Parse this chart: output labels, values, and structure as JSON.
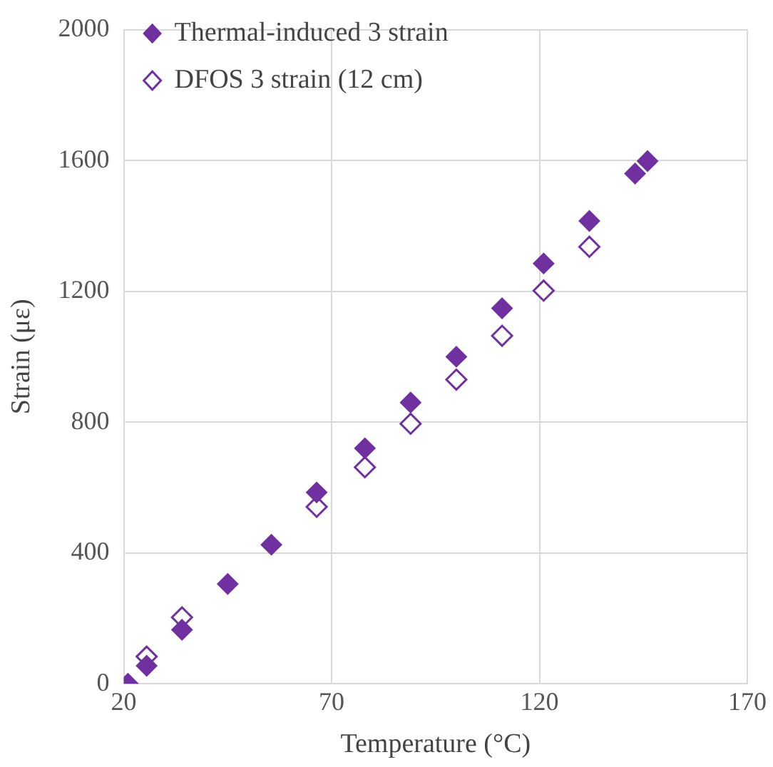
{
  "chart_data": {
    "type": "scatter",
    "xlabel": "Temperature (°C)",
    "ylabel": "Strain (με)",
    "xlim": [
      20,
      170
    ],
    "xticks": [
      20,
      70,
      120,
      170
    ],
    "ylim": [
      0,
      2000
    ],
    "yticks": [
      0,
      400,
      800,
      1200,
      1600,
      2000
    ],
    "grid": true,
    "legend": "top left",
    "marker": "diamond",
    "series": [
      {
        "name": "Thermal-induced 3 strain",
        "color": "#7030a0",
        "x": [
          21,
          25.5,
          34,
          45,
          55.5,
          66.4,
          78,
          89,
          100,
          111,
          121,
          132,
          143,
          146
        ],
        "values": [
          0,
          55,
          165,
          305,
          425,
          585,
          720,
          860,
          1000,
          1148,
          1285,
          1415,
          1560,
          1598
        ]
      },
      {
        "name": "DFOS 3 strain (12 cm)",
        "color": "#7030a0",
        "marker": "diamond-open",
        "x": [
          25.5,
          34,
          66.4,
          78,
          89,
          100,
          111,
          121,
          132
        ],
        "values": [
          83,
          203,
          541,
          662,
          795,
          930,
          1064,
          1202,
          1336
        ]
      }
    ]
  }
}
